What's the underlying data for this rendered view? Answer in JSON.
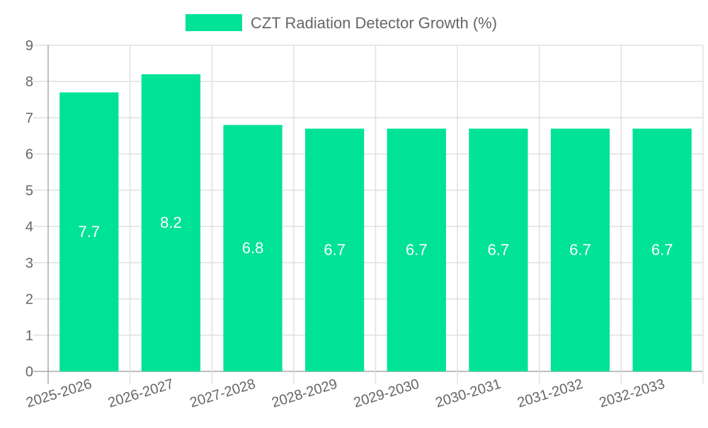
{
  "chart_data": {
    "type": "bar",
    "title": "",
    "legend": {
      "label": "CZT Radiation Detector Growth (%)",
      "placement": "top-center"
    },
    "categories": [
      "2025-2026",
      "2026-2027",
      "2027-2028",
      "2028-2029",
      "2029-2030",
      "2030-2031",
      "2031-2032",
      "2032-2033"
    ],
    "series": [
      {
        "name": "CZT Radiation Detector Growth (%)",
        "values": [
          7.7,
          8.2,
          6.8,
          6.7,
          6.7,
          6.7,
          6.7,
          6.7
        ]
      }
    ],
    "ylim": [
      0,
      9
    ],
    "yticks": [
      "0",
      "1",
      "2",
      "3",
      "4",
      "5",
      "6",
      "7",
      "8",
      "9"
    ],
    "xlabel": "",
    "ylabel": "",
    "grid": true,
    "colors": {
      "bar": "#00e396",
      "grid": "#e0e0e0",
      "axis": "#aaaaaa",
      "text": "#666666",
      "label": "#ffffff"
    }
  }
}
